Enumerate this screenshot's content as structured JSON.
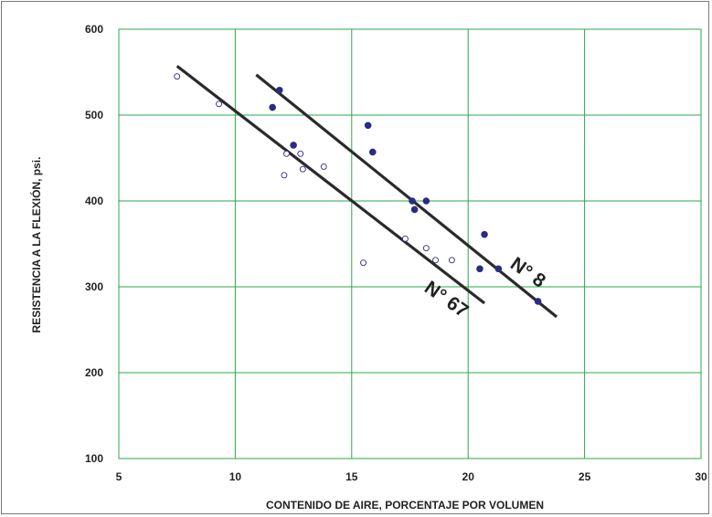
{
  "chart_data": {
    "type": "scatter",
    "title": "",
    "xlabel": "CONTENIDO DE AIRE, PORCENTAJE POR VOLUMEN",
    "ylabel": "RESISTENCIA A LA FLEXIÓN, psi.",
    "xlim": [
      5,
      30
    ],
    "ylim": [
      100,
      600
    ],
    "xticks": [
      "5",
      "10",
      "15",
      "20",
      "25",
      "30"
    ],
    "yticks": [
      "100",
      "200",
      "300",
      "400",
      "500",
      "600"
    ],
    "grid": true,
    "grid_color": "#2aa84a",
    "series": [
      {
        "label": "N° 8",
        "marker": "filled-circle",
        "color": "#2b2b85",
        "points": [
          [
            11.9,
            529
          ],
          [
            11.6,
            509
          ],
          [
            15.7,
            488
          ],
          [
            12.5,
            465
          ],
          [
            15.9,
            457
          ],
          [
            17.6,
            400
          ],
          [
            18.2,
            400
          ],
          [
            17.7,
            390
          ],
          [
            20.7,
            361
          ],
          [
            20.5,
            321
          ],
          [
            21.3,
            321
          ],
          [
            23.0,
            283
          ]
        ],
        "trend": [
          [
            10.9,
            547
          ],
          [
            23.8,
            265
          ]
        ]
      },
      {
        "label": "N° 67",
        "marker": "open-circle",
        "color": "#2b2b85",
        "points": [
          [
            7.5,
            545
          ],
          [
            9.3,
            513
          ],
          [
            12.2,
            455
          ],
          [
            12.8,
            455
          ],
          [
            12.1,
            430
          ],
          [
            12.9,
            437
          ],
          [
            13.8,
            440
          ],
          [
            17.3,
            356
          ],
          [
            18.2,
            345
          ],
          [
            18.6,
            331
          ],
          [
            19.3,
            331
          ],
          [
            15.5,
            328
          ]
        ],
        "trend": [
          [
            7.5,
            557
          ],
          [
            20.7,
            281
          ]
        ]
      }
    ]
  }
}
